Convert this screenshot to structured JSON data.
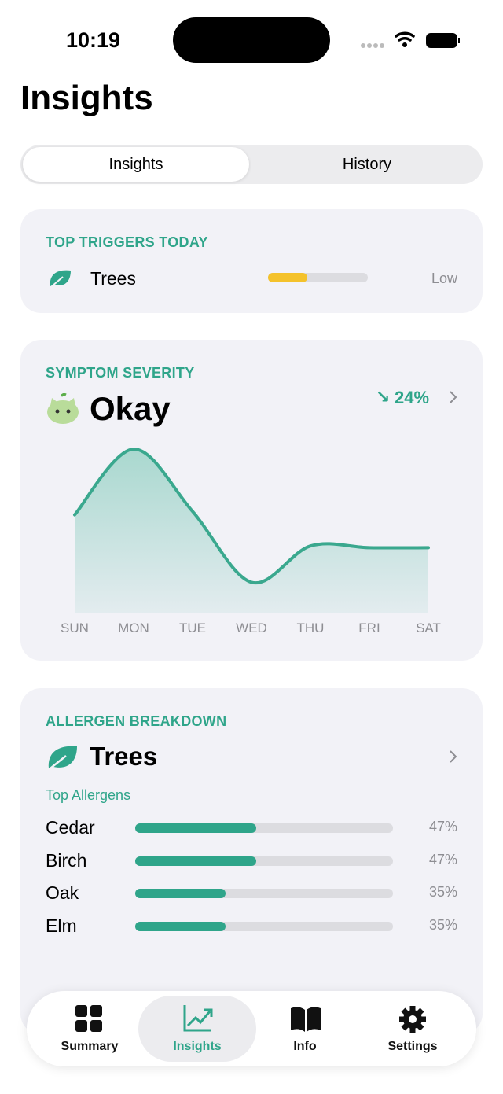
{
  "status": {
    "time": "10:19"
  },
  "header": {
    "title": "Insights"
  },
  "segmented": {
    "options": [
      "Insights",
      "History"
    ]
  },
  "triggers": {
    "title": "TOP TRIGGERS TODAY",
    "items": [
      {
        "name": "Trees",
        "level": "Low"
      }
    ]
  },
  "severity": {
    "title": "SYMPTOM SEVERITY",
    "status": "Okay",
    "change": "24%",
    "days": [
      "SUN",
      "MON",
      "TUE",
      "WED",
      "THU",
      "FRI",
      "SAT"
    ],
    "values": [
      57,
      95,
      59,
      18,
      39,
      38,
      38
    ]
  },
  "breakdown": {
    "title": "ALLERGEN BREAKDOWN",
    "category": "Trees",
    "subtitle": "Top Allergens",
    "items": [
      {
        "name": "Cedar",
        "value": 47,
        "label": "47%"
      },
      {
        "name": "Birch",
        "value": 47,
        "label": "47%"
      },
      {
        "name": "Oak",
        "value": 35,
        "label": "35%"
      },
      {
        "name": "Elm",
        "value": 35,
        "label": "35%"
      }
    ]
  },
  "tabs": [
    "Summary",
    "Insights",
    "Info",
    "Settings"
  ]
}
